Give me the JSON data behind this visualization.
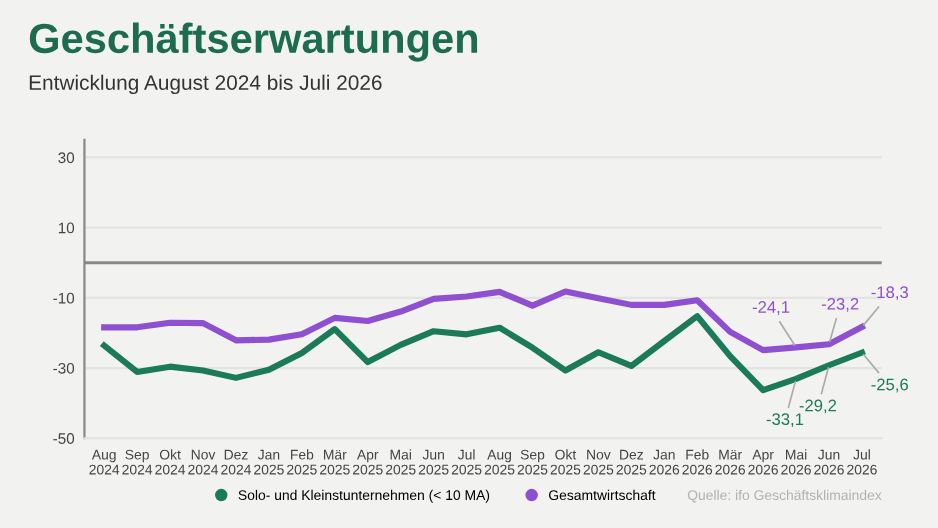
{
  "chart_data": {
    "type": "line",
    "title": "Geschäftserwartungen",
    "subtitle": "Entwicklung August 2024 bis Juli 2026",
    "categories": [
      "Aug\n2024",
      "Sep\n2024",
      "Okt\n2024",
      "Nov\n2024",
      "Dez\n2024",
      "Jan\n2025",
      "Feb\n2025",
      "Mär\n2025",
      "Apr\n2025",
      "Mai\n2025",
      "Jun\n2025",
      "Jul\n2025",
      "Aug\n2025",
      "Sep\n2025",
      "Okt\n2025",
      "Nov\n2025",
      "Dez\n2025",
      "Jan\n2026",
      "Feb\n2026",
      "Mär\n2026",
      "Apr\n2026",
      "Mai\n2026",
      "Jun\n2026",
      "Jul\n2026"
    ],
    "series": [
      {
        "name": "Solo- und Kleinstunternehmen (< 10 MA)",
        "color": "#1a7a5a",
        "values": [
          -23.6,
          -31.1,
          -29.6,
          -30.7,
          -32.8,
          -30.5,
          -25.7,
          -18.9,
          -28.3,
          -23.4,
          -19.5,
          -20.4,
          -18.5,
          -24.2,
          -30.7,
          -25.5,
          -29.4,
          -22.3,
          -15.2,
          -26.6,
          -36.3,
          -33.1,
          -29.2,
          -25.6
        ],
        "value_labels": [
          null,
          null,
          null,
          null,
          null,
          null,
          null,
          null,
          null,
          null,
          null,
          null,
          null,
          null,
          null,
          null,
          null,
          null,
          null,
          null,
          null,
          "-33,1",
          "-29,2",
          "-25,6"
        ]
      },
      {
        "name": "Gesamtwirtschaft",
        "color": "#8e4fd0",
        "values": [
          -18.4,
          -18.4,
          -17.1,
          -17.2,
          -22.1,
          -21.9,
          -20.4,
          -15.7,
          -16.6,
          -13.9,
          -10.3,
          -9.6,
          -8.3,
          -12.2,
          -8.2,
          -10.1,
          -12.0,
          -12.0,
          -10.7,
          -19.7,
          -24.9,
          -24.1,
          -23.2,
          -18.3
        ],
        "value_labels": [
          null,
          null,
          null,
          null,
          null,
          null,
          null,
          null,
          null,
          null,
          null,
          null,
          null,
          null,
          null,
          null,
          null,
          null,
          null,
          null,
          null,
          "-24,1",
          "-23,2",
          "-18,3"
        ]
      }
    ],
    "ylim": [
      -50,
      35
    ],
    "yticks": [
      -50,
      -30,
      -10,
      10,
      30
    ],
    "grid": "y",
    "legend": "bottom",
    "ref_lines": [
      {
        "axis": "y",
        "value": 0,
        "color": "#888888"
      }
    ],
    "annotations": [
      "Quelle: ifo Geschäftsklimaindex"
    ]
  }
}
